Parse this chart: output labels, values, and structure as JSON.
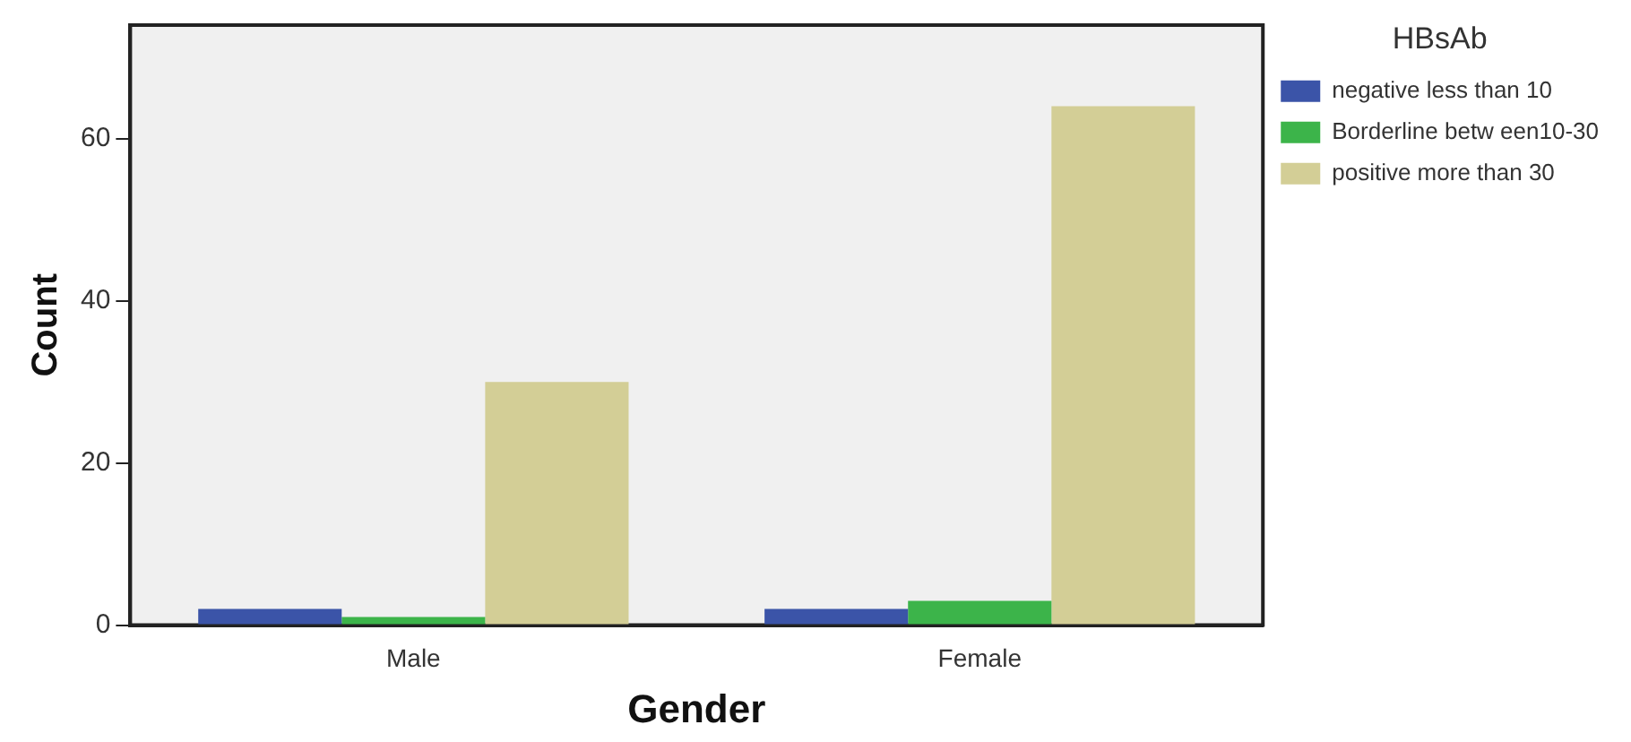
{
  "chart_data": {
    "type": "bar",
    "xlabel": "Gender",
    "ylabel": "Count",
    "legend_title": "HBsAb",
    "legend": "right",
    "categories": [
      "Male",
      "Female"
    ],
    "series": [
      {
        "name": "negative less than 10",
        "color": "#3b54a8",
        "values": [
          2,
          2
        ]
      },
      {
        "name": "Borderline betw een10-30",
        "color": "#3cb44a",
        "values": [
          1,
          3
        ]
      },
      {
        "name": "positive more than 30",
        "color": "#d3ce96",
        "values": [
          30,
          64
        ]
      }
    ],
    "ylim": [
      0,
      74
    ],
    "yticks": [
      0,
      20,
      40,
      60
    ],
    "grid": false
  }
}
